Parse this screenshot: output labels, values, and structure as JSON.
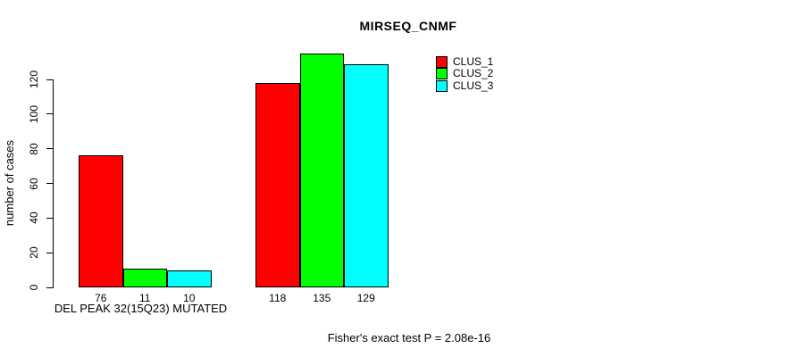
{
  "chart_data": {
    "type": "bar",
    "title": "MIRSEQ_CNMF",
    "ylabel": "number of cases",
    "xlabel": "DEL PEAK 32(15Q23) MUTATED",
    "footnote": "Fisher's exact test P = 2.08e-16",
    "y_ticks": [
      0,
      20,
      40,
      60,
      80,
      100,
      120
    ],
    "ylim": [
      0,
      140
    ],
    "grid": false,
    "legend_position": "inside-top-center",
    "categories": [
      "DEL PEAK 32(15Q23) MUTATED",
      ""
    ],
    "series": [
      {
        "name": "CLUS_1",
        "color": "#ff0000",
        "values": [
          76,
          118
        ]
      },
      {
        "name": "CLUS_2",
        "color": "#00ff00",
        "values": [
          11,
          135
        ]
      },
      {
        "name": "CLUS_3",
        "color": "#00ffff",
        "values": [
          10,
          129
        ]
      }
    ],
    "bar_value_labels": [
      [
        76,
        11,
        10
      ],
      [
        118,
        135,
        129
      ]
    ],
    "background": "#ffffff",
    "axis_color": "#000000"
  }
}
